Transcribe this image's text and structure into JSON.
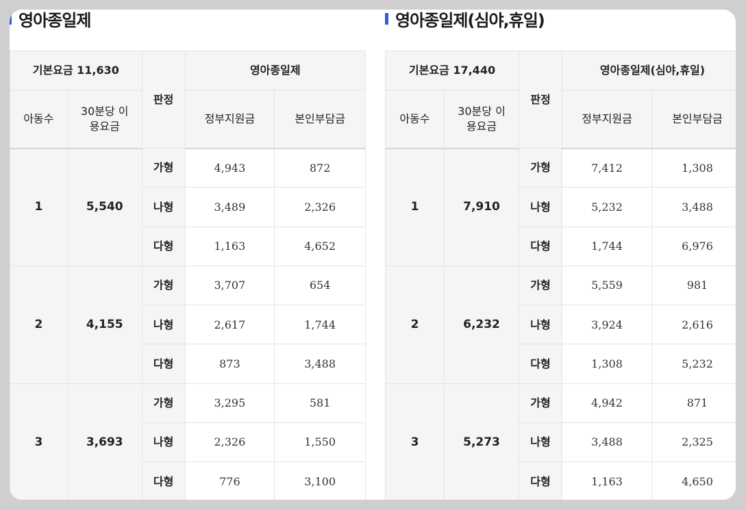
{
  "tables": [
    {
      "title": "영아종일제",
      "header": {
        "basic_fee": "기본요금 11,630",
        "judgement": "판정",
        "group_title": "영아종일제",
        "children": "아동수",
        "fee_30min": "30분당 이용요금",
        "gov_support": "정부지원금",
        "self_pay": "본인부담금"
      },
      "groups": [
        {
          "children": "1",
          "fee": "5,540",
          "rows": [
            {
              "type": "가형",
              "gov": "4,943",
              "self": "872"
            },
            {
              "type": "나형",
              "gov": "3,489",
              "self": "2,326"
            },
            {
              "type": "다형",
              "gov": "1,163",
              "self": "4,652"
            }
          ]
        },
        {
          "children": "2",
          "fee": "4,155",
          "rows": [
            {
              "type": "가형",
              "gov": "3,707",
              "self": "654"
            },
            {
              "type": "나형",
              "gov": "2,617",
              "self": "1,744"
            },
            {
              "type": "다형",
              "gov": "873",
              "self": "3,488"
            }
          ]
        },
        {
          "children": "3",
          "fee": "3,693",
          "rows": [
            {
              "type": "가형",
              "gov": "3,295",
              "self": "581"
            },
            {
              "type": "나형",
              "gov": "2,326",
              "self": "1,550"
            },
            {
              "type": "다형",
              "gov": "776",
              "self": "3,100"
            }
          ]
        }
      ]
    },
    {
      "title": "영아종일제(심야,휴일)",
      "header": {
        "basic_fee": "기본요금 17,440",
        "judgement": "판정",
        "group_title": "영아종일제(심야,휴일)",
        "children": "아동수",
        "fee_30min": "30분당 이용요금",
        "gov_support": "정부지원금",
        "self_pay": "본인부담금"
      },
      "groups": [
        {
          "children": "1",
          "fee": "7,910",
          "rows": [
            {
              "type": "가형",
              "gov": "7,412",
              "self": "1,308"
            },
            {
              "type": "나형",
              "gov": "5,232",
              "self": "3,488"
            },
            {
              "type": "다형",
              "gov": "1,744",
              "self": "6,976"
            }
          ]
        },
        {
          "children": "2",
          "fee": "6,232",
          "rows": [
            {
              "type": "가형",
              "gov": "5,559",
              "self": "981"
            },
            {
              "type": "나형",
              "gov": "3,924",
              "self": "2,616"
            },
            {
              "type": "다형",
              "gov": "1,308",
              "self": "5,232"
            }
          ]
        },
        {
          "children": "3",
          "fee": "5,273",
          "rows": [
            {
              "type": "가형",
              "gov": "4,942",
              "self": "871"
            },
            {
              "type": "나형",
              "gov": "3,488",
              "self": "2,325"
            },
            {
              "type": "다형",
              "gov": "1,163",
              "self": "4,650"
            }
          ]
        }
      ]
    }
  ]
}
